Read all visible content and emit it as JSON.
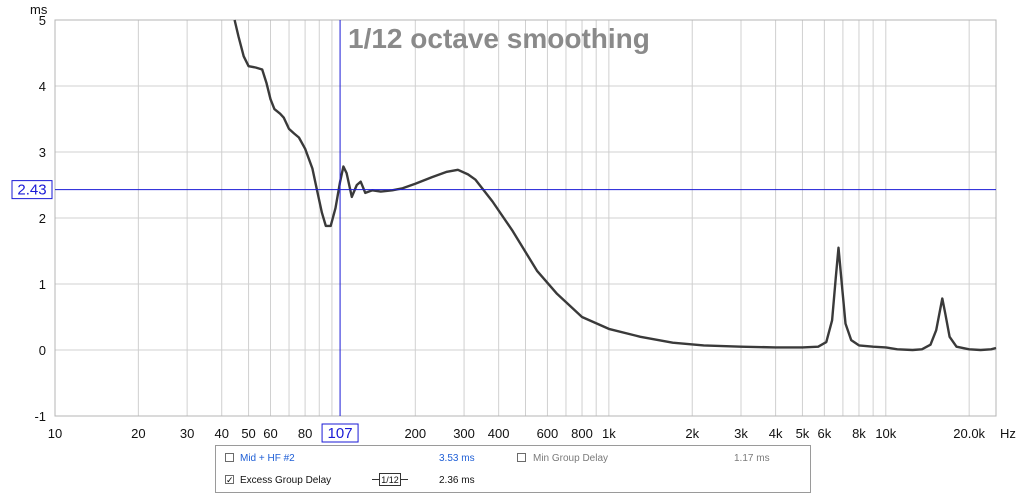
{
  "chart_data": {
    "type": "line",
    "title": "1/12 octave smoothing",
    "ylabel": "ms",
    "xlabel": "Hz",
    "xscale": "log",
    "xlim": [
      10,
      25000
    ],
    "ylim": [
      -1,
      5
    ],
    "grid": true,
    "x_tick_labels": [
      {
        "x": 10,
        "label": "10"
      },
      {
        "x": 20,
        "label": "20"
      },
      {
        "x": 30,
        "label": "30"
      },
      {
        "x": 40,
        "label": "40"
      },
      {
        "x": 50,
        "label": "50"
      },
      {
        "x": 60,
        "label": "60"
      },
      {
        "x": 80,
        "label": "80"
      },
      {
        "x": 200,
        "label": "200"
      },
      {
        "x": 300,
        "label": "300"
      },
      {
        "x": 400,
        "label": "400"
      },
      {
        "x": 600,
        "label": "600"
      },
      {
        "x": 800,
        "label": "800"
      },
      {
        "x": 1000,
        "label": "1k"
      },
      {
        "x": 2000,
        "label": "2k"
      },
      {
        "x": 3000,
        "label": "3k"
      },
      {
        "x": 4000,
        "label": "4k"
      },
      {
        "x": 5000,
        "label": "5k"
      },
      {
        "x": 6000,
        "label": "6k"
      },
      {
        "x": 8000,
        "label": "8k"
      },
      {
        "x": 10000,
        "label": "10k"
      },
      {
        "x": 20000,
        "label": "20.0k"
      }
    ],
    "x_unit_label": "Hz",
    "y_ticks": [
      -1,
      0,
      1,
      2,
      3,
      4,
      5
    ],
    "y_tick_labels": [
      "-1",
      "0",
      "1",
      "2",
      "3",
      "4",
      "5"
    ],
    "cursor": {
      "x": 107,
      "y": 2.43,
      "x_label": "107",
      "y_label": "2.43",
      "color": "#1a1ad6"
    },
    "series": [
      {
        "color": "#3a3a3a",
        "points": [
          [
            44.5,
            5.0
          ],
          [
            46,
            4.75
          ],
          [
            48,
            4.45
          ],
          [
            50,
            4.3
          ],
          [
            53,
            4.28
          ],
          [
            56,
            4.25
          ],
          [
            58,
            4.05
          ],
          [
            60,
            3.8
          ],
          [
            62,
            3.65
          ],
          [
            65,
            3.58
          ],
          [
            67,
            3.52
          ],
          [
            70,
            3.35
          ],
          [
            73,
            3.28
          ],
          [
            76,
            3.22
          ],
          [
            80,
            3.05
          ],
          [
            85,
            2.75
          ],
          [
            88,
            2.45
          ],
          [
            92,
            2.08
          ],
          [
            95,
            1.88
          ],
          [
            99,
            1.88
          ],
          [
            103,
            2.15
          ],
          [
            107,
            2.55
          ],
          [
            110,
            2.78
          ],
          [
            113,
            2.68
          ],
          [
            118,
            2.32
          ],
          [
            123,
            2.5
          ],
          [
            127,
            2.55
          ],
          [
            132,
            2.38
          ],
          [
            140,
            2.42
          ],
          [
            150,
            2.4
          ],
          [
            165,
            2.42
          ],
          [
            180,
            2.45
          ],
          [
            200,
            2.52
          ],
          [
            230,
            2.62
          ],
          [
            260,
            2.7
          ],
          [
            285,
            2.73
          ],
          [
            310,
            2.66
          ],
          [
            330,
            2.58
          ],
          [
            380,
            2.25
          ],
          [
            450,
            1.8
          ],
          [
            550,
            1.2
          ],
          [
            650,
            0.85
          ],
          [
            800,
            0.5
          ],
          [
            1000,
            0.32
          ],
          [
            1300,
            0.2
          ],
          [
            1700,
            0.11
          ],
          [
            2200,
            0.07
          ],
          [
            3000,
            0.05
          ],
          [
            4000,
            0.04
          ],
          [
            5000,
            0.04
          ],
          [
            5700,
            0.05
          ],
          [
            6100,
            0.12
          ],
          [
            6400,
            0.45
          ],
          [
            6600,
            1.1
          ],
          [
            6750,
            1.55
          ],
          [
            6900,
            1.1
          ],
          [
            7150,
            0.4
          ],
          [
            7500,
            0.15
          ],
          [
            8000,
            0.07
          ],
          [
            9000,
            0.05
          ],
          [
            10000,
            0.04
          ],
          [
            11000,
            0.01
          ],
          [
            12500,
            0.0
          ],
          [
            13500,
            0.01
          ],
          [
            14500,
            0.08
          ],
          [
            15200,
            0.3
          ],
          [
            15700,
            0.6
          ],
          [
            16000,
            0.78
          ],
          [
            16400,
            0.55
          ],
          [
            17000,
            0.2
          ],
          [
            18000,
            0.05
          ],
          [
            20000,
            0.01
          ],
          [
            22000,
            0.0
          ],
          [
            24000,
            0.01
          ],
          [
            25000,
            0.03
          ]
        ]
      }
    ]
  },
  "legend": {
    "row1": {
      "checked": false,
      "label": "Mid + HF #2",
      "value": "3.53 ms",
      "secondary": {
        "checked": false,
        "label": "Min Group Delay",
        "value": "1.17 ms"
      }
    },
    "row2": {
      "checked": true,
      "label": "Excess Group Delay",
      "smoothing": "1/12",
      "value": "2.36 ms"
    }
  }
}
